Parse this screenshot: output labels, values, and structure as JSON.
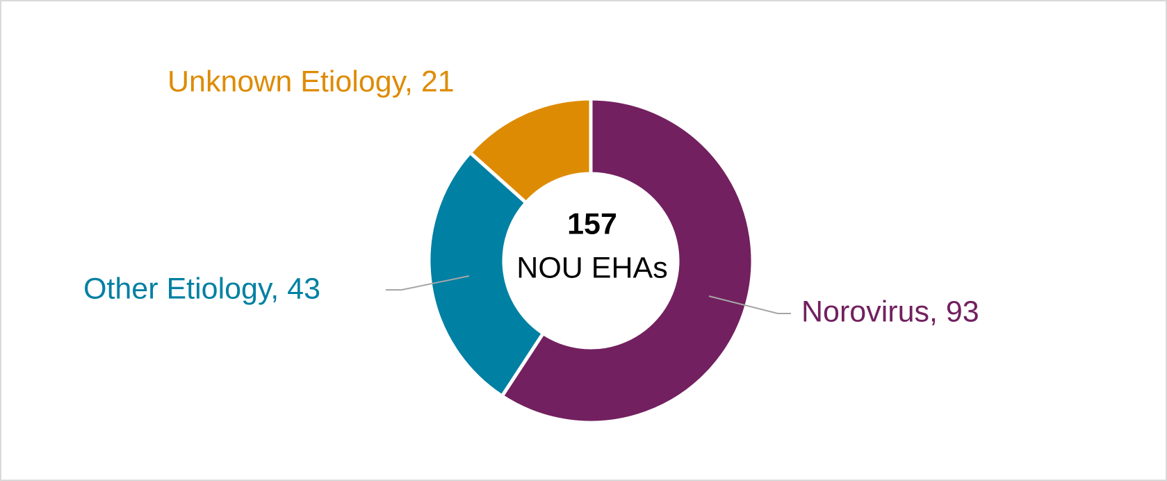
{
  "chart_data": {
    "type": "pie",
    "values": [
      93,
      43,
      21
    ],
    "value_labels": [
      "Norovirus, 93",
      "Other Etiology, 43",
      "Unknown Etiology, 21"
    ],
    "colors": [
      "#72205f",
      "#0080a3",
      "#de8b04"
    ],
    "total": 157,
    "center_label": "NOU EHAs"
  }
}
